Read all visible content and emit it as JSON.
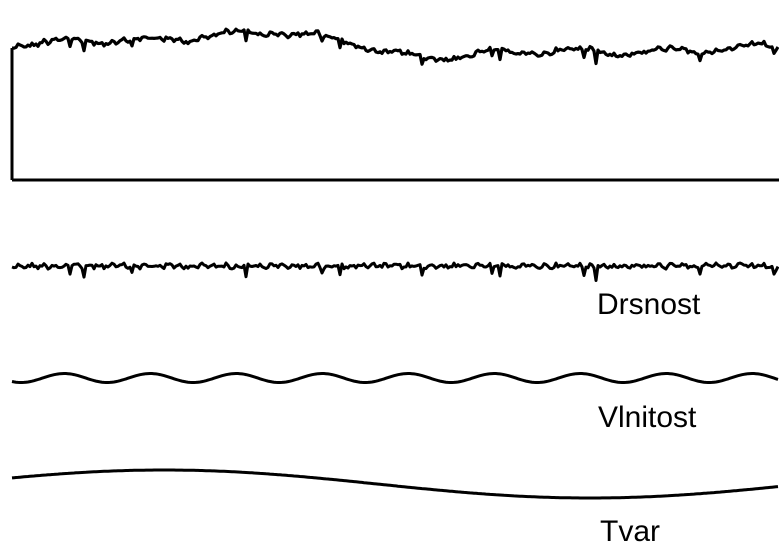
{
  "labels": {
    "roughness": "Drsnost",
    "waviness": "Vlnitost",
    "form": "Tvar"
  },
  "colors": {
    "line": "#000000",
    "background": "#ffffff"
  }
}
